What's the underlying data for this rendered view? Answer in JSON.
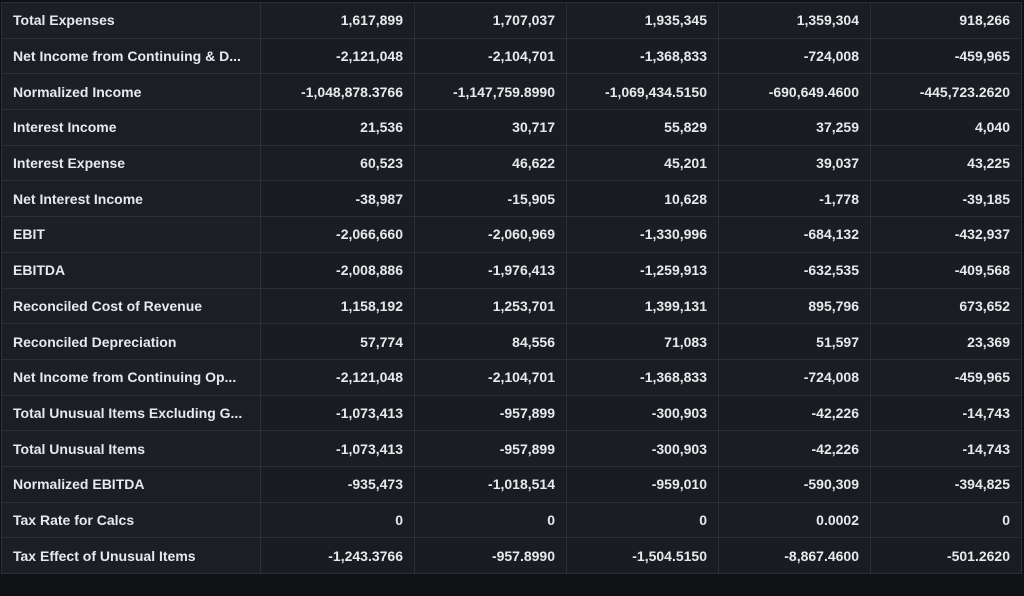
{
  "rows": [
    {
      "label": "Total Expenses",
      "values": [
        "1,617,899",
        "1,707,037",
        "1,935,345",
        "1,359,304",
        "918,266"
      ]
    },
    {
      "label": "Net Income from Continuing & D...",
      "values": [
        "-2,121,048",
        "-2,104,701",
        "-1,368,833",
        "-724,008",
        "-459,965"
      ]
    },
    {
      "label": "Normalized Income",
      "values": [
        "-1,048,878.3766",
        "-1,147,759.8990",
        "-1,069,434.5150",
        "-690,649.4600",
        "-445,723.2620"
      ]
    },
    {
      "label": "Interest Income",
      "values": [
        "21,536",
        "30,717",
        "55,829",
        "37,259",
        "4,040"
      ]
    },
    {
      "label": "Interest Expense",
      "values": [
        "60,523",
        "46,622",
        "45,201",
        "39,037",
        "43,225"
      ]
    },
    {
      "label": "Net Interest Income",
      "values": [
        "-38,987",
        "-15,905",
        "10,628",
        "-1,778",
        "-39,185"
      ]
    },
    {
      "label": "EBIT",
      "values": [
        "-2,066,660",
        "-2,060,969",
        "-1,330,996",
        "-684,132",
        "-432,937"
      ]
    },
    {
      "label": "EBITDA",
      "values": [
        "-2,008,886",
        "-1,976,413",
        "-1,259,913",
        "-632,535",
        "-409,568"
      ]
    },
    {
      "label": "Reconciled Cost of Revenue",
      "values": [
        "1,158,192",
        "1,253,701",
        "1,399,131",
        "895,796",
        "673,652"
      ]
    },
    {
      "label": "Reconciled Depreciation",
      "values": [
        "57,774",
        "84,556",
        "71,083",
        "51,597",
        "23,369"
      ]
    },
    {
      "label": "Net Income from Continuing Op...",
      "values": [
        "-2,121,048",
        "-2,104,701",
        "-1,368,833",
        "-724,008",
        "-459,965"
      ]
    },
    {
      "label": "Total Unusual Items Excluding G...",
      "values": [
        "-1,073,413",
        "-957,899",
        "-300,903",
        "-42,226",
        "-14,743"
      ]
    },
    {
      "label": "Total Unusual Items",
      "values": [
        "-1,073,413",
        "-957,899",
        "-300,903",
        "-42,226",
        "-14,743"
      ]
    },
    {
      "label": "Normalized EBITDA",
      "values": [
        "-935,473",
        "-1,018,514",
        "-959,010",
        "-590,309",
        "-394,825"
      ]
    },
    {
      "label": "Tax Rate for Calcs",
      "values": [
        "0",
        "0",
        "0",
        "0.0002",
        "0"
      ]
    },
    {
      "label": "Tax Effect of Unusual Items",
      "values": [
        "-1,243.3766",
        "-957.8990",
        "-1,504.5150",
        "-8,867.4600",
        "-501.2620"
      ]
    }
  ]
}
